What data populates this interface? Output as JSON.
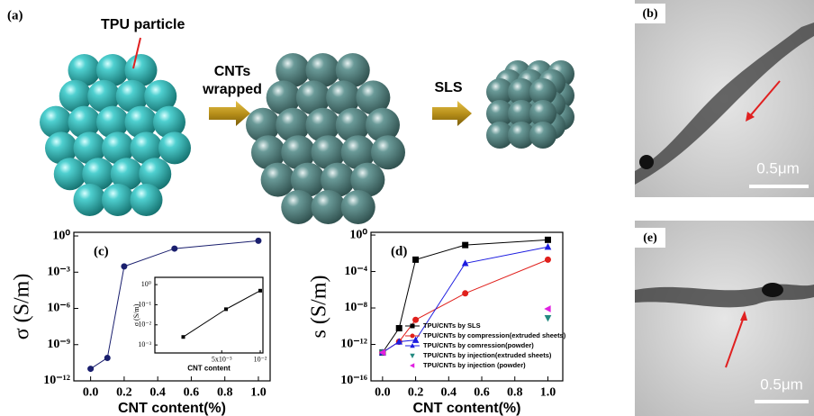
{
  "schematic": {
    "panel_label": "(a)",
    "particle_label": "TPU particle",
    "step1_line1": "CNTs",
    "step1_line2": "wrapped",
    "step2": "SLS"
  },
  "micrographs": [
    {
      "panel_label": "(b)",
      "scale": "0.5μm"
    },
    {
      "panel_label": "(e)",
      "scale": "0.5μm"
    }
  ],
  "chart_data": [
    {
      "type": "line",
      "panel_label": "(c)",
      "y_label": "σ (S/m)",
      "x_label": "CNT content(%)",
      "ylog": true,
      "xlim": [
        -0.1,
        1.07
      ],
      "ylim": [
        1e-12,
        2
      ],
      "xticks": [
        {
          "value": 0,
          "label": "0.0"
        },
        0.2,
        0.4,
        0.6,
        0.8,
        {
          "value": 1,
          "label": "1.0"
        }
      ],
      "yticks": [
        {
          "value": 1e-12,
          "label": "10⁻¹²"
        },
        {
          "value": 1e-09,
          "label": "10⁻⁹"
        },
        {
          "value": 1e-06,
          "label": "10⁻⁶"
        },
        {
          "value": 0.001,
          "label": "10⁻³"
        },
        {
          "value": 1,
          "label": "10⁰"
        }
      ],
      "series": [
        {
          "color": "#1a1f6e",
          "marker": "circle",
          "line": true,
          "x": [
            0,
            0.1,
            0.2,
            0.5,
            1
          ],
          "values": [
            1e-11,
            8e-11,
            0.003,
            0.09,
            0.4
          ]
        }
      ]
    },
    {
      "type": "line",
      "y_label": "σ (S/m)",
      "x_label": "CNT content",
      "ylog": true,
      "xlog": true,
      "xlim": [
        0.0015,
        0.0105
      ],
      "ylim": [
        0.0004,
        2.3
      ],
      "xticks": [
        {
          "value": 0.005,
          "label": "5x10⁻³"
        },
        {
          "value": 0.01,
          "label": "10⁻²"
        }
      ],
      "yticks": [
        {
          "value": 0.001,
          "label": "10⁻³"
        },
        {
          "value": 0.01,
          "label": "10⁻²"
        },
        {
          "value": 0.1,
          "label": "10⁻¹"
        },
        {
          "value": 1,
          "label": "10⁰"
        }
      ],
      "series": [
        {
          "color": "#000000",
          "marker": "square",
          "line": true,
          "x": [
            0.0025,
            0.0054,
            0.01
          ],
          "values": [
            0.0025,
            0.06,
            0.5
          ]
        }
      ]
    },
    {
      "type": "line",
      "panel_label": "(d)",
      "y_label": "s (S/m)",
      "x_label": "CNT content(%)",
      "ylog": true,
      "legend": "lower right",
      "xlim": [
        -0.07,
        1.09
      ],
      "ylim": [
        1e-16,
        2
      ],
      "xticks": [
        {
          "value": 0,
          "label": "0.0"
        },
        0.2,
        0.4,
        0.6,
        0.8,
        {
          "value": 1,
          "label": "1.0"
        }
      ],
      "yticks": [
        {
          "value": 1e-16,
          "label": "10⁻¹⁶"
        },
        {
          "value": 1e-12,
          "label": "10⁻¹²"
        },
        {
          "value": 1e-08,
          "label": "10⁻⁸"
        },
        {
          "value": 0.0001,
          "label": "10⁻⁴"
        },
        {
          "value": 1,
          "label": "10⁰"
        }
      ],
      "series": [
        {
          "name": "TPU/CNTs by SLS",
          "color": "#000000",
          "marker": "square",
          "line": true,
          "x": [
            0,
            0.1,
            0.2,
            0.5,
            1
          ],
          "values": [
            1.3e-13,
            6e-11,
            0.002,
            0.08,
            0.3
          ]
        },
        {
          "name": "TPU/CNTs by compression(extruded sheets)",
          "color": "#e0201c",
          "marker": "circle",
          "line": true,
          "x": [
            0,
            0.1,
            0.2,
            0.5,
            1
          ],
          "values": [
            1.3e-13,
            2e-12,
            5e-10,
            4e-07,
            0.002
          ]
        },
        {
          "name": "TPU/CNTs by comression(powder)",
          "color": "#1c1ce0",
          "marker": "triangle-up",
          "line": true,
          "x": [
            0,
            0.1,
            0.2,
            0.5,
            1
          ],
          "values": [
            1.3e-13,
            2e-12,
            3e-12,
            0.0008,
            0.05
          ]
        },
        {
          "name": "TPU/CNTs by injection(extruded sheets)",
          "color": "#238a80",
          "marker": "triangle-down",
          "line": false,
          "x": [
            0,
            1
          ],
          "values": [
            1.3e-13,
            8e-10
          ]
        },
        {
          "name": "TPU/CNTs by injection (powder)",
          "color": "#e020e0",
          "marker": "triangle-left",
          "line": false,
          "x": [
            0,
            1
          ],
          "values": [
            1.3e-13,
            8e-09
          ]
        }
      ]
    }
  ]
}
